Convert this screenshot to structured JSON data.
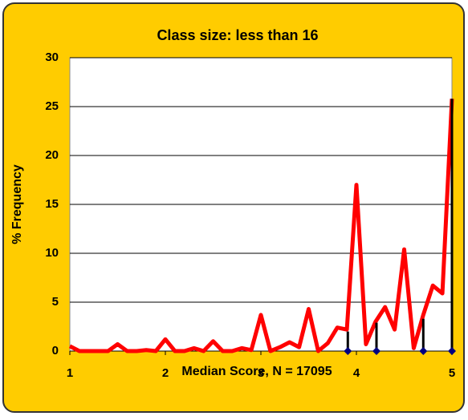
{
  "chart_data": {
    "type": "line",
    "title": "Class size: less than 16",
    "xlabel": "Median Score, N = 17095",
    "ylabel": "% Frequency",
    "xlim": [
      1,
      5
    ],
    "xticks": [
      1,
      2,
      3,
      4,
      5
    ],
    "ylim": [
      0,
      30
    ],
    "yticks": [
      0,
      5,
      10,
      15,
      20,
      25,
      30
    ],
    "grid": true,
    "series": [
      {
        "color": "#ff0000",
        "x": [
          1,
          1.1,
          1.2,
          1.3,
          1.4,
          1.5,
          1.6,
          1.7,
          1.8,
          1.9,
          2,
          2.1,
          2.2,
          2.3,
          2.4,
          2.5,
          2.6,
          2.7,
          2.8,
          2.9,
          3,
          3.1,
          3.2,
          3.3,
          3.4,
          3.5,
          3.6,
          3.7,
          3.8,
          3.9,
          4,
          4.1,
          4.2,
          4.3,
          4.4,
          4.5,
          4.6,
          4.7,
          4.8,
          4.9,
          5
        ],
        "values": [
          0.5,
          0,
          0,
          0,
          0,
          0.7,
          0,
          0,
          0.1,
          0,
          1.2,
          0,
          0,
          0.3,
          0,
          1,
          0,
          0,
          0.3,
          0.1,
          3.7,
          0,
          0.4,
          0.9,
          0.4,
          4.3,
          0,
          0.8,
          2.4,
          2.2,
          17,
          0.7,
          3,
          4.5,
          2.2,
          10.4,
          0.3,
          3.7,
          6.7,
          5.9,
          25.8
        ]
      },
      {
        "color": "#000000",
        "marker_color": "#00007f",
        "x": [
          3.91,
          4.21,
          4.7,
          5
        ],
        "values": [
          2,
          2.9,
          3.3,
          25.8
        ]
      }
    ]
  }
}
